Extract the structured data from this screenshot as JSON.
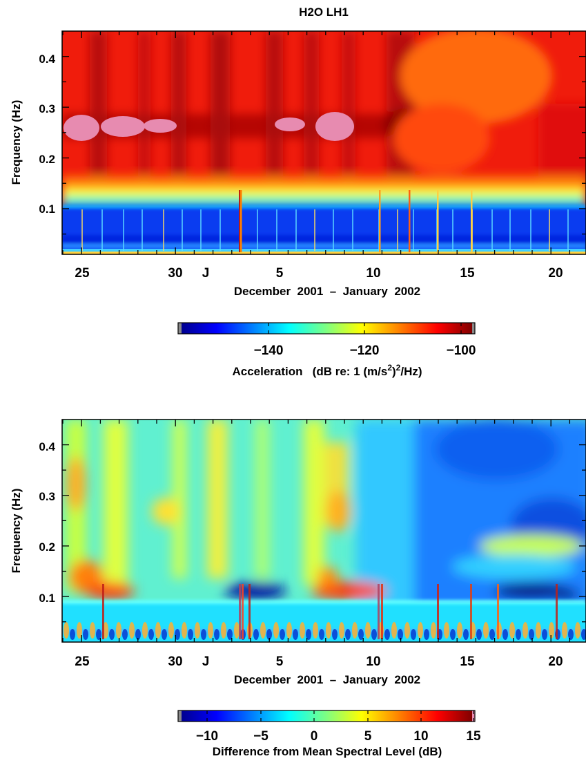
{
  "title": "H2O  LH1",
  "chart_data": [
    {
      "type": "heatmap",
      "ylabel": "Frequency  (Hz)",
      "yticks": [
        "0.1",
        "0.2",
        "0.3",
        "0.4"
      ],
      "ylim": [
        0.01,
        0.45
      ],
      "xticks": [
        "25",
        "30",
        "J",
        "5",
        "10",
        "15",
        "20"
      ],
      "xlabel": "December  2001  –  January  2002",
      "colorbar": {
        "ticks": [
          "−140",
          "−120",
          "−100"
        ],
        "range": [
          -155,
          -95
        ],
        "label_main": "Acceleration   (dB re: 1 (m/s",
        "sup1": "2",
        "label_mid": ")",
        "sup2": "2",
        "label_end": "/Hz)"
      }
    },
    {
      "type": "heatmap",
      "ylabel": "Frequency  (Hz)",
      "yticks": [
        "0.1",
        "0.2",
        "0.3",
        "0.4"
      ],
      "ylim": [
        0.01,
        0.45
      ],
      "xticks": [
        "25",
        "30",
        "J",
        "5",
        "10",
        "15",
        "20"
      ],
      "xlabel": "December  2001  –  January  2002",
      "colorbar": {
        "ticks": [
          "−10",
          "−5",
          "0",
          "5",
          "10",
          "15"
        ],
        "range": [
          -12,
          15
        ],
        "label": "Difference from Mean Spectral Level  (dB)"
      }
    }
  ],
  "colors": {
    "jet": [
      "#00008f",
      "#0000ff",
      "#0080ff",
      "#00ffff",
      "#80ff80",
      "#ffff00",
      "#ff8000",
      "#ff0000",
      "#800000"
    ],
    "saturated": "#e78bb0"
  }
}
